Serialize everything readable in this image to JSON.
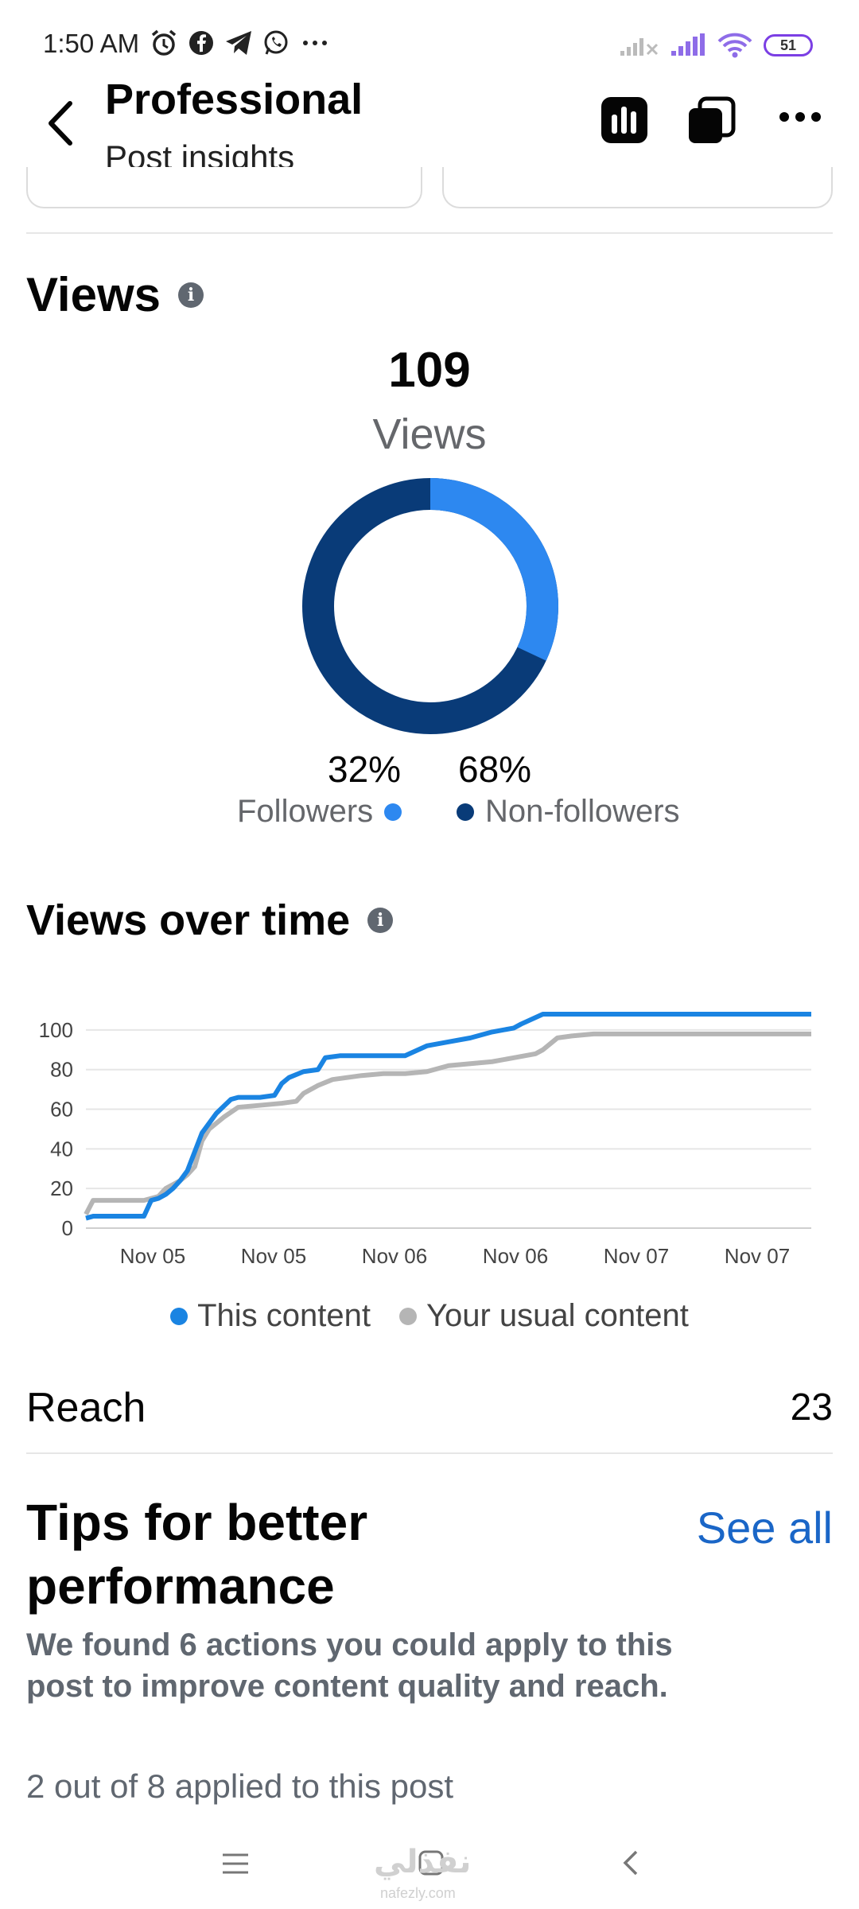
{
  "status_bar": {
    "time": "1:50 AM",
    "icons_left": [
      "alarm-icon",
      "facebook-icon",
      "telegram-icon",
      "whatsapp-icon",
      "more-notifications-icon"
    ],
    "battery": "51"
  },
  "header": {
    "title": "Professional",
    "subtitle": "Post insights"
  },
  "views": {
    "heading": "Views",
    "total": "109",
    "total_label": "Views",
    "followers_pct": "32%",
    "followers_label": "Followers",
    "nonfollowers_pct": "68%",
    "nonfollowers_label": "Non-followers",
    "colors": {
      "followers": "#2d88f0",
      "nonfollowers": "#093b78"
    }
  },
  "views_over_time": {
    "heading": "Views over time",
    "legend": [
      "This content",
      "Your usual content"
    ]
  },
  "chart_data": {
    "type": "line",
    "x_tick_labels": [
      "Nov 05",
      "Nov 05",
      "Nov 06",
      "Nov 06",
      "Nov 07",
      "Nov 07"
    ],
    "ylim": [
      0,
      110
    ],
    "y_ticks": [
      0,
      20,
      40,
      60,
      80,
      100
    ],
    "grid": true,
    "legend_position": "bottom",
    "series": [
      {
        "name": "This content",
        "color": "#1a84e2",
        "x": [
          0,
          1,
          8,
          9,
          10,
          11,
          12,
          13,
          14,
          16,
          18,
          20,
          21,
          22,
          24,
          26,
          27,
          28,
          30,
          32,
          33,
          35,
          38,
          41,
          44,
          47,
          50,
          53,
          56,
          59,
          60,
          63,
          66,
          70,
          75,
          80,
          90,
          100
        ],
        "y": [
          5,
          6,
          6,
          14,
          15,
          17,
          20,
          24,
          29,
          48,
          58,
          65,
          66,
          66,
          66,
          67,
          73,
          76,
          79,
          80,
          86,
          87,
          87,
          87,
          87,
          92,
          94,
          96,
          99,
          101,
          103,
          108,
          108,
          108,
          108,
          108,
          108,
          108
        ]
      },
      {
        "name": "Your usual content",
        "color": "#b5b5b5",
        "x": [
          0,
          1,
          8,
          9,
          10,
          11,
          12,
          13,
          14,
          15,
          16,
          17,
          19,
          21,
          24,
          27,
          29,
          30,
          32,
          34,
          36,
          38,
          41,
          44,
          47,
          50,
          53,
          56,
          59,
          62,
          63,
          65,
          67,
          70,
          75,
          80,
          90,
          100
        ],
        "y": [
          7,
          14,
          14,
          15,
          16,
          20,
          22,
          24,
          27,
          31,
          44,
          50,
          56,
          61,
          62,
          63,
          64,
          68,
          72,
          75,
          76,
          77,
          78,
          78,
          79,
          82,
          83,
          84,
          86,
          88,
          90,
          96,
          97,
          98,
          98,
          98,
          98,
          98
        ]
      }
    ]
  },
  "reach": {
    "label": "Reach",
    "value": "23"
  },
  "tips": {
    "title": "Tips for better performance",
    "see_all": "See all",
    "description": "We found 6 actions you could apply to this post to improve content quality and reach.",
    "applied": "2 out of 8 applied to this post"
  },
  "nav": {
    "icons": [
      "menu-icon",
      "home-square-icon",
      "back-triangle-icon"
    ]
  },
  "watermark": {
    "text": "نفذلي",
    "sub": "nafezly.com"
  }
}
